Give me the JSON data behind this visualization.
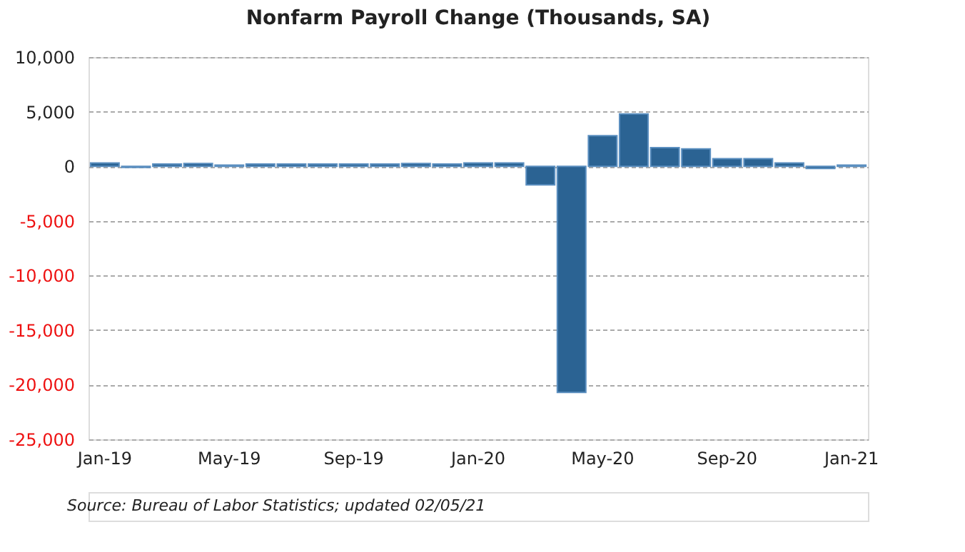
{
  "chart_data": {
    "type": "bar",
    "title": "Nonfarm Payroll Change (Thousands, SA)",
    "categories": [
      "Jan-19",
      null,
      null,
      null,
      "May-19",
      null,
      null,
      null,
      "Sep-19",
      null,
      null,
      null,
      "Jan-20",
      null,
      null,
      null,
      "May-20",
      null,
      null,
      null,
      "Sep-20",
      null,
      null,
      null,
      "Jan-21"
    ],
    "values": [
      300,
      -100,
      200,
      250,
      100,
      200,
      200,
      200,
      200,
      200,
      250,
      200,
      300,
      300,
      -1700,
      -20700,
      2800,
      4800,
      1700,
      1600,
      700,
      700,
      300,
      -200,
      100
    ],
    "color": "#2b6393",
    "ylim": [
      -25000,
      10000
    ],
    "yticks": [
      {
        "value": -25000,
        "label": "-25,000"
      },
      {
        "value": -20000,
        "label": "-20,000"
      },
      {
        "value": -15000,
        "label": "-15,000"
      },
      {
        "value": -10000,
        "label": "-10,000"
      },
      {
        "value": -5000,
        "label": "-5,000"
      },
      0,
      {
        "value": 5000,
        "label": "5,000"
      },
      {
        "value": 10000,
        "label": "10,000"
      }
    ],
    "grid": "y",
    "annotations": [
      "Source: Bureau of Labor Statistics; updated 02/05/21"
    ]
  }
}
